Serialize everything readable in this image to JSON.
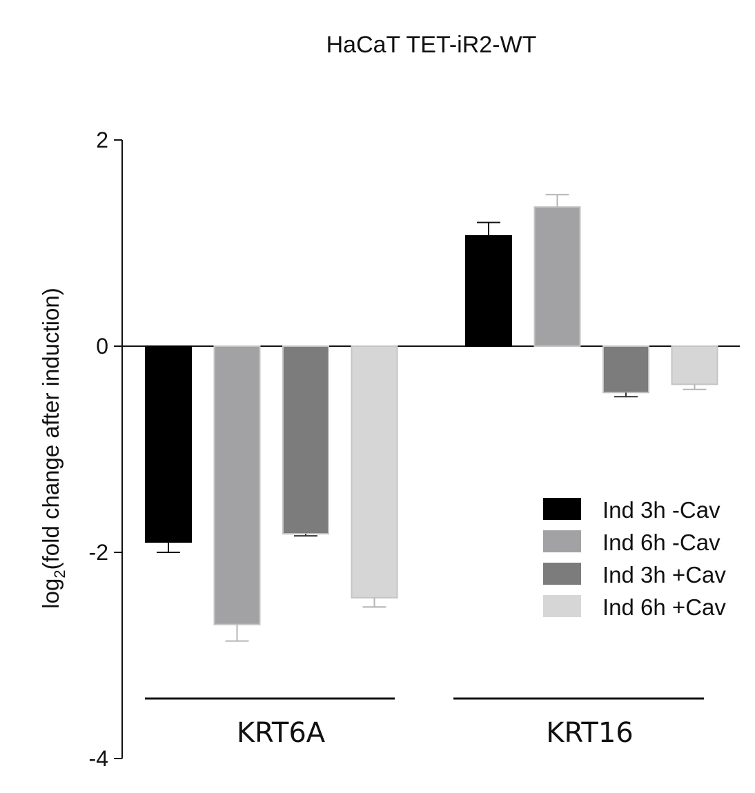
{
  "chart_data": {
    "type": "bar",
    "title": "HaCaT TET-iR2-WT",
    "ylabel": {
      "pre": "log",
      "sub": "2",
      "post": "(fold change after induction)"
    },
    "xlabel": "",
    "ylim": [
      -4,
      2
    ],
    "yticks": [
      {
        "value": 2,
        "label": "2"
      },
      {
        "value": 0,
        "label": "0"
      },
      {
        "value": -2,
        "label": "-2"
      },
      {
        "value": -4,
        "label": "-4"
      }
    ],
    "categories": [
      "KRT6A",
      "KRT16"
    ],
    "series": [
      {
        "name": "Ind 3h -Cav",
        "color": "#000000",
        "values": [
          -1.9,
          1.07
        ],
        "errors": [
          0.1,
          0.13
        ]
      },
      {
        "name": "Ind 6h -Cav",
        "color": "#a2a2a4",
        "values": [
          -2.7,
          1.35
        ],
        "errors": [
          0.16,
          0.12
        ]
      },
      {
        "name": "Ind 3h +Cav",
        "color": "#7c7c7c",
        "values": [
          -1.82,
          -0.45
        ],
        "errors": [
          0.02,
          0.04
        ]
      },
      {
        "name": "Ind 6h +Cav",
        "color": "#d6d6d6",
        "values": [
          -2.44,
          -0.37
        ],
        "errors": [
          0.09,
          0.05
        ]
      }
    ],
    "grid": false,
    "legend": "bottom-right"
  }
}
